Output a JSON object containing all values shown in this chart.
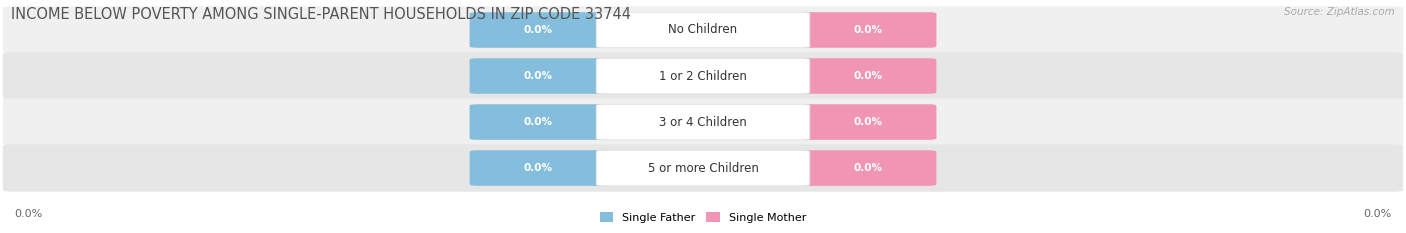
{
  "title": "INCOME BELOW POVERTY AMONG SINGLE-PARENT HOUSEHOLDS IN ZIP CODE 33744",
  "source": "Source: ZipAtlas.com",
  "categories": [
    "No Children",
    "1 or 2 Children",
    "3 or 4 Children",
    "5 or more Children"
  ],
  "father_values": [
    0.0,
    0.0,
    0.0,
    0.0
  ],
  "mother_values": [
    0.0,
    0.0,
    0.0,
    0.0
  ],
  "father_color": "#85bedd",
  "mother_color": "#f096b4",
  "row_bg_color_light": "#f0f0f0",
  "row_bg_color_dark": "#e6e6e6",
  "title_fontsize": 10.5,
  "source_fontsize": 7.5,
  "label_fontsize": 8,
  "value_fontsize": 7.5,
  "cat_fontsize": 8.5,
  "axis_label_left": "0.0%",
  "axis_label_right": "0.0%",
  "legend_father": "Single Father",
  "legend_mother": "Single Mother",
  "background_color": "#ffffff"
}
